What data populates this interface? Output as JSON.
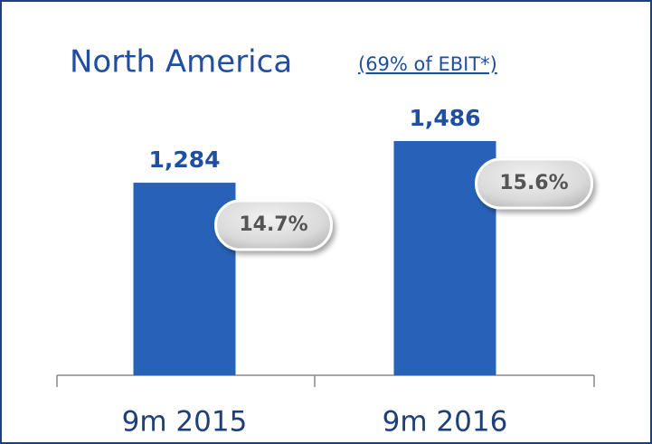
{
  "chart_data": {
    "type": "bar",
    "title": "North America",
    "subtitle": "(69% of EBIT*)",
    "categories": [
      "9m 2015",
      "9m 2016"
    ],
    "values": [
      1284,
      1486
    ],
    "value_labels": [
      "1,284",
      "1,486"
    ],
    "margin_labels": [
      "14.7%",
      "15.6%"
    ],
    "color": "#2862b8",
    "ylim": [
      350,
      1600
    ]
  }
}
